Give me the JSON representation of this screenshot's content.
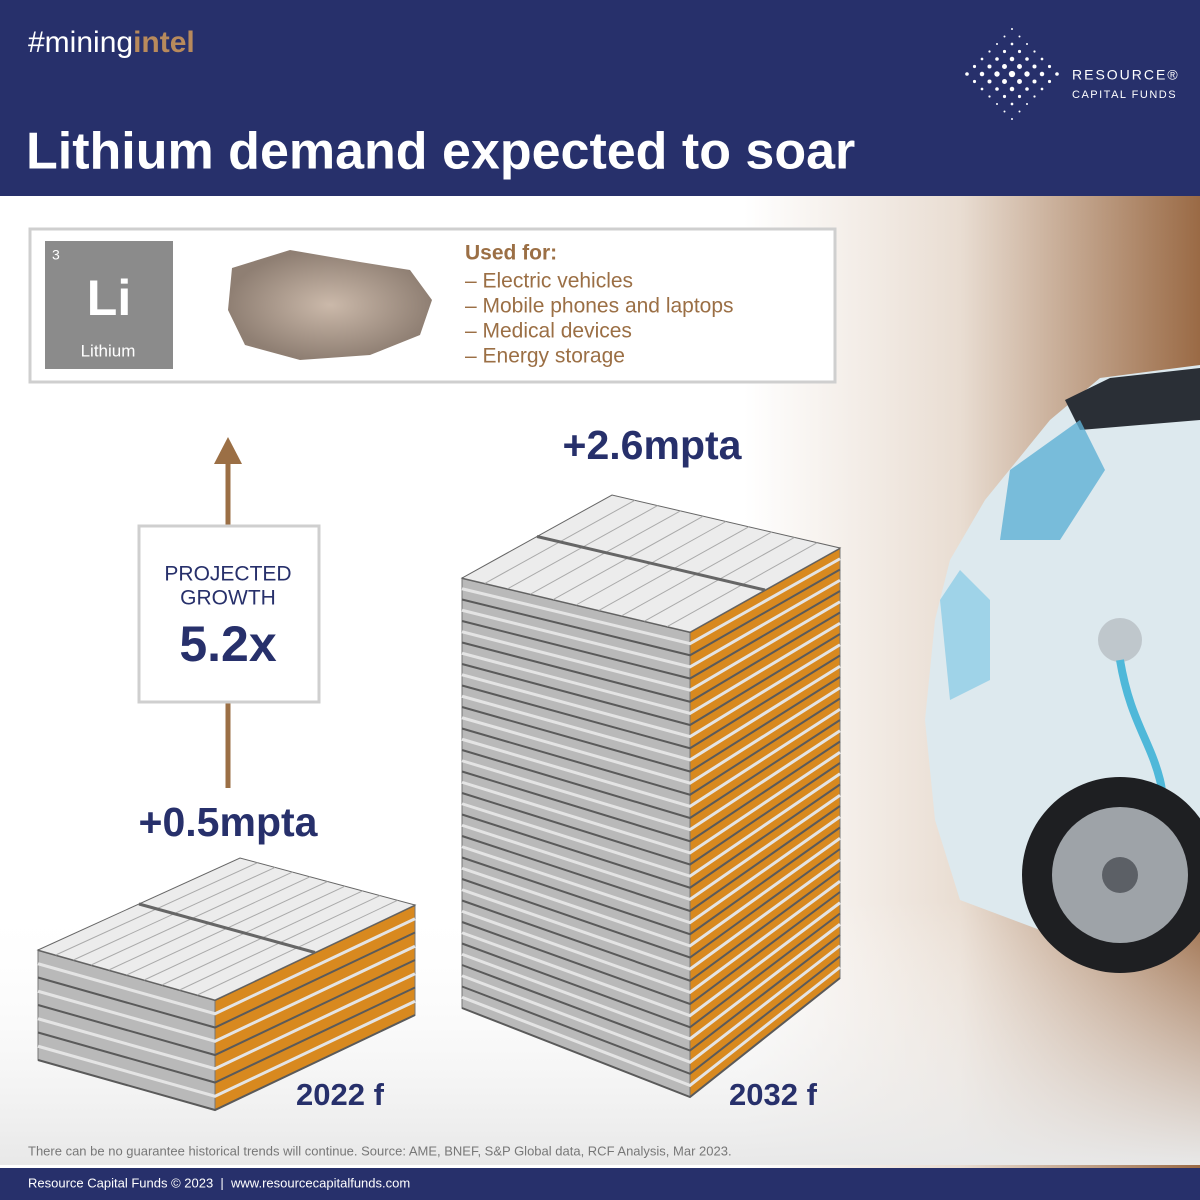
{
  "header": {
    "hashtag_prefix": "#mining",
    "hashtag_suffix": "intel",
    "logo_line1": "RESOURCE®",
    "logo_line2": "CAPITAL FUNDS",
    "title": "Lithium demand expected to soar"
  },
  "element": {
    "number": 3,
    "symbol": "Li",
    "name": "Lithium"
  },
  "uses": {
    "heading": "Used for:",
    "items": [
      "– Electric vehicles",
      "– Mobile phones and laptops",
      "– Medical devices",
      "– Energy storage"
    ]
  },
  "growth": {
    "label_line1": "PROJECTED",
    "label_line2": "GROWTH",
    "value": "5.2x"
  },
  "stacks": [
    {
      "label": "+0.5mpta",
      "year": "2022 f"
    },
    {
      "label": "+2.6mpta",
      "year": "2032 f"
    }
  ],
  "footer": {
    "disclaimer": "There can be no guarantee historical trends will continue. Source: AME, BNEF, S&P Global data, RCF Analysis, Mar 2023.",
    "credit": "Resource Capital Funds © 2023  |  www.resourcecapitalfunds.com"
  }
}
